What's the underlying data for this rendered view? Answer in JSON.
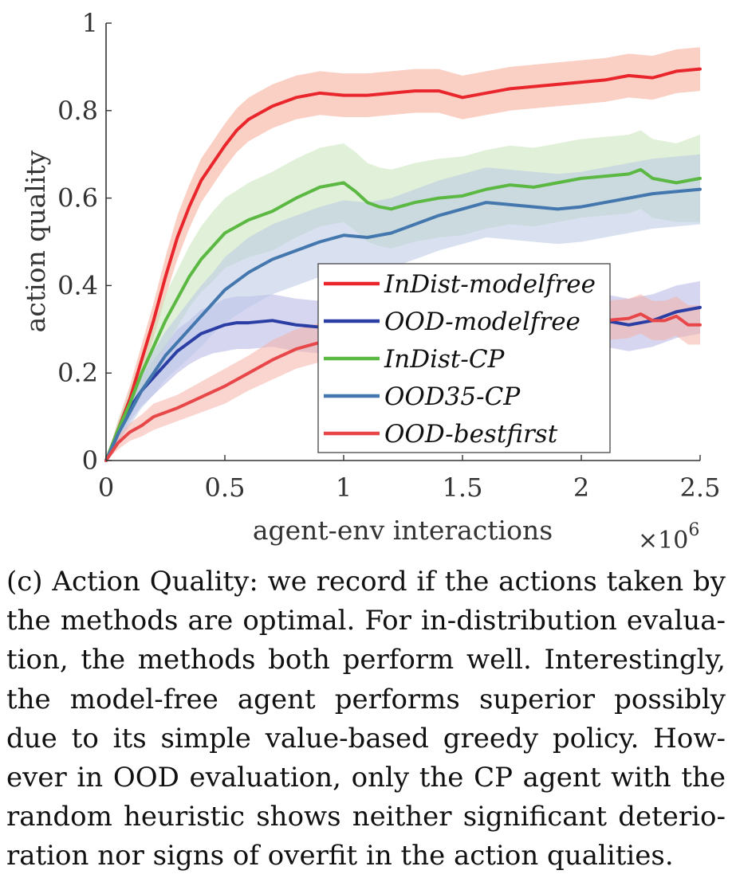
{
  "chart_data": {
    "type": "line",
    "xlabel": "agent-env interactions",
    "xlabel_multiplier": "×10",
    "xlabel_multiplier_exp": "6",
    "ylabel": "action quality",
    "xlim": [
      0,
      2.5
    ],
    "ylim": [
      0,
      1
    ],
    "xticks": [
      0,
      0.5,
      1,
      1.5,
      2,
      2.5
    ],
    "xtick_labels": [
      "0",
      "0.5",
      "1",
      "1.5",
      "2",
      "2.5"
    ],
    "yticks": [
      0,
      0.2,
      0.4,
      0.6,
      0.8,
      1
    ],
    "ytick_labels": [
      "0",
      "0.2",
      "0.4",
      "0.6",
      "0.8",
      "1"
    ],
    "grid": false,
    "legend_position": "center-right",
    "series": [
      {
        "name": "InDist-modelfree",
        "color": "#e8262c",
        "band_color": "#f5a894",
        "x": [
          0,
          0.05,
          0.1,
          0.15,
          0.2,
          0.25,
          0.3,
          0.35,
          0.4,
          0.45,
          0.5,
          0.55,
          0.6,
          0.65,
          0.7,
          0.8,
          0.9,
          1.0,
          1.1,
          1.2,
          1.3,
          1.4,
          1.5,
          1.6,
          1.7,
          1.8,
          1.9,
          2.0,
          2.1,
          2.2,
          2.3,
          2.4,
          2.5
        ],
        "y": [
          0,
          0.07,
          0.14,
          0.23,
          0.32,
          0.42,
          0.51,
          0.58,
          0.64,
          0.68,
          0.72,
          0.755,
          0.78,
          0.795,
          0.81,
          0.83,
          0.84,
          0.835,
          0.835,
          0.84,
          0.845,
          0.845,
          0.83,
          0.84,
          0.85,
          0.855,
          0.86,
          0.865,
          0.87,
          0.88,
          0.875,
          0.89,
          0.895
        ],
        "band": [
          0,
          0.02,
          0.03,
          0.035,
          0.04,
          0.045,
          0.05,
          0.05,
          0.05,
          0.05,
          0.05,
          0.05,
          0.05,
          0.05,
          0.05,
          0.05,
          0.05,
          0.05,
          0.05,
          0.05,
          0.05,
          0.05,
          0.05,
          0.05,
          0.05,
          0.05,
          0.05,
          0.05,
          0.05,
          0.05,
          0.05,
          0.05,
          0.05
        ]
      },
      {
        "name": "OOD-modelfree",
        "color": "#2b3ea3",
        "band_color": "#b4b5e6",
        "x": [
          0,
          0.05,
          0.1,
          0.15,
          0.2,
          0.25,
          0.3,
          0.35,
          0.4,
          0.45,
          0.5,
          0.55,
          0.6,
          0.7,
          0.8,
          0.9,
          1.0,
          1.1,
          1.2,
          1.3,
          1.4,
          1.5,
          1.6,
          1.7,
          1.8,
          1.9,
          2.0,
          2.1,
          2.2,
          2.3,
          2.4,
          2.5
        ],
        "y": [
          0,
          0.06,
          0.12,
          0.16,
          0.19,
          0.22,
          0.25,
          0.27,
          0.29,
          0.3,
          0.31,
          0.315,
          0.315,
          0.32,
          0.31,
          0.305,
          0.3,
          0.305,
          0.31,
          0.31,
          0.305,
          0.3,
          0.3,
          0.31,
          0.31,
          0.31,
          0.315,
          0.32,
          0.31,
          0.32,
          0.34,
          0.35
        ],
        "band": [
          0,
          0.02,
          0.03,
          0.035,
          0.04,
          0.045,
          0.05,
          0.05,
          0.055,
          0.055,
          0.06,
          0.06,
          0.06,
          0.06,
          0.06,
          0.06,
          0.06,
          0.06,
          0.06,
          0.06,
          0.06,
          0.06,
          0.06,
          0.06,
          0.06,
          0.06,
          0.06,
          0.06,
          0.06,
          0.06,
          0.06,
          0.06
        ]
      },
      {
        "name": "InDist-CP",
        "color": "#5bb842",
        "band_color": "#c9e4b8",
        "x": [
          0,
          0.05,
          0.1,
          0.15,
          0.2,
          0.25,
          0.3,
          0.35,
          0.4,
          0.45,
          0.5,
          0.6,
          0.7,
          0.8,
          0.9,
          1.0,
          1.05,
          1.1,
          1.15,
          1.2,
          1.3,
          1.4,
          1.5,
          1.6,
          1.7,
          1.8,
          1.9,
          2.0,
          2.1,
          2.2,
          2.25,
          2.3,
          2.4,
          2.5
        ],
        "y": [
          0,
          0.07,
          0.13,
          0.2,
          0.26,
          0.32,
          0.37,
          0.42,
          0.46,
          0.49,
          0.52,
          0.55,
          0.57,
          0.6,
          0.625,
          0.635,
          0.615,
          0.59,
          0.58,
          0.575,
          0.59,
          0.6,
          0.605,
          0.62,
          0.63,
          0.625,
          0.635,
          0.645,
          0.65,
          0.655,
          0.665,
          0.645,
          0.635,
          0.645
        ],
        "band": [
          0,
          0.02,
          0.03,
          0.04,
          0.05,
          0.06,
          0.065,
          0.07,
          0.075,
          0.08,
          0.08,
          0.085,
          0.09,
          0.09,
          0.09,
          0.09,
          0.09,
          0.09,
          0.09,
          0.09,
          0.09,
          0.09,
          0.09,
          0.09,
          0.09,
          0.09,
          0.09,
          0.09,
          0.09,
          0.09,
          0.09,
          0.09,
          0.09,
          0.1
        ]
      },
      {
        "name": "OOD35-CP",
        "color": "#4377ad",
        "band_color": "#b9c8e6",
        "x": [
          0,
          0.05,
          0.1,
          0.15,
          0.2,
          0.25,
          0.3,
          0.35,
          0.4,
          0.45,
          0.5,
          0.6,
          0.7,
          0.8,
          0.9,
          1.0,
          1.1,
          1.2,
          1.3,
          1.4,
          1.5,
          1.6,
          1.7,
          1.8,
          1.9,
          2.0,
          2.1,
          2.2,
          2.3,
          2.4,
          2.5
        ],
        "y": [
          0,
          0.06,
          0.11,
          0.16,
          0.2,
          0.24,
          0.27,
          0.3,
          0.33,
          0.36,
          0.39,
          0.43,
          0.46,
          0.48,
          0.5,
          0.515,
          0.51,
          0.52,
          0.54,
          0.56,
          0.575,
          0.59,
          0.585,
          0.58,
          0.575,
          0.58,
          0.59,
          0.6,
          0.61,
          0.615,
          0.62
        ],
        "band": [
          0,
          0.02,
          0.03,
          0.04,
          0.05,
          0.055,
          0.06,
          0.065,
          0.07,
          0.07,
          0.075,
          0.08,
          0.08,
          0.08,
          0.08,
          0.08,
          0.08,
          0.08,
          0.08,
          0.08,
          0.08,
          0.08,
          0.08,
          0.08,
          0.08,
          0.08,
          0.08,
          0.08,
          0.08,
          0.08,
          0.08
        ]
      },
      {
        "name": "OOD-bestfirst",
        "color": "#e8474a",
        "band_color": "#f5b1a6",
        "x": [
          0,
          0.05,
          0.1,
          0.15,
          0.2,
          0.3,
          0.4,
          0.5,
          0.6,
          0.7,
          0.8,
          0.9,
          1.0,
          1.1,
          1.2,
          1.3,
          1.4,
          1.5,
          1.6,
          1.7,
          1.8,
          1.9,
          2.0,
          2.1,
          2.2,
          2.25,
          2.3,
          2.35,
          2.4,
          2.45,
          2.5
        ],
        "y": [
          0,
          0.04,
          0.065,
          0.08,
          0.1,
          0.12,
          0.145,
          0.17,
          0.2,
          0.23,
          0.255,
          0.27,
          0.28,
          0.29,
          0.295,
          0.3,
          0.3,
          0.305,
          0.305,
          0.31,
          0.31,
          0.31,
          0.315,
          0.32,
          0.325,
          0.335,
          0.32,
          0.32,
          0.33,
          0.31,
          0.31
        ],
        "band": [
          0,
          0.015,
          0.02,
          0.025,
          0.03,
          0.03,
          0.035,
          0.04,
          0.04,
          0.045,
          0.045,
          0.045,
          0.045,
          0.045,
          0.045,
          0.045,
          0.045,
          0.045,
          0.045,
          0.045,
          0.045,
          0.045,
          0.045,
          0.045,
          0.045,
          0.045,
          0.045,
          0.045,
          0.045,
          0.045,
          0.045
        ]
      }
    ]
  },
  "caption": {
    "lines": [
      "(c) Action Quality: we record if the actions taken by",
      "the methods are optimal. For in-distribution evalua-",
      "tion, the methods both perform well. Interestingly,",
      "the model-free agent performs superior possibly",
      "due to its simple value-based greedy policy. How-",
      "ever in OOD evaluation, only the CP agent with the",
      "random heuristic shows neither significant deterio-",
      "ration nor signs of overfit in the action qualities."
    ]
  }
}
